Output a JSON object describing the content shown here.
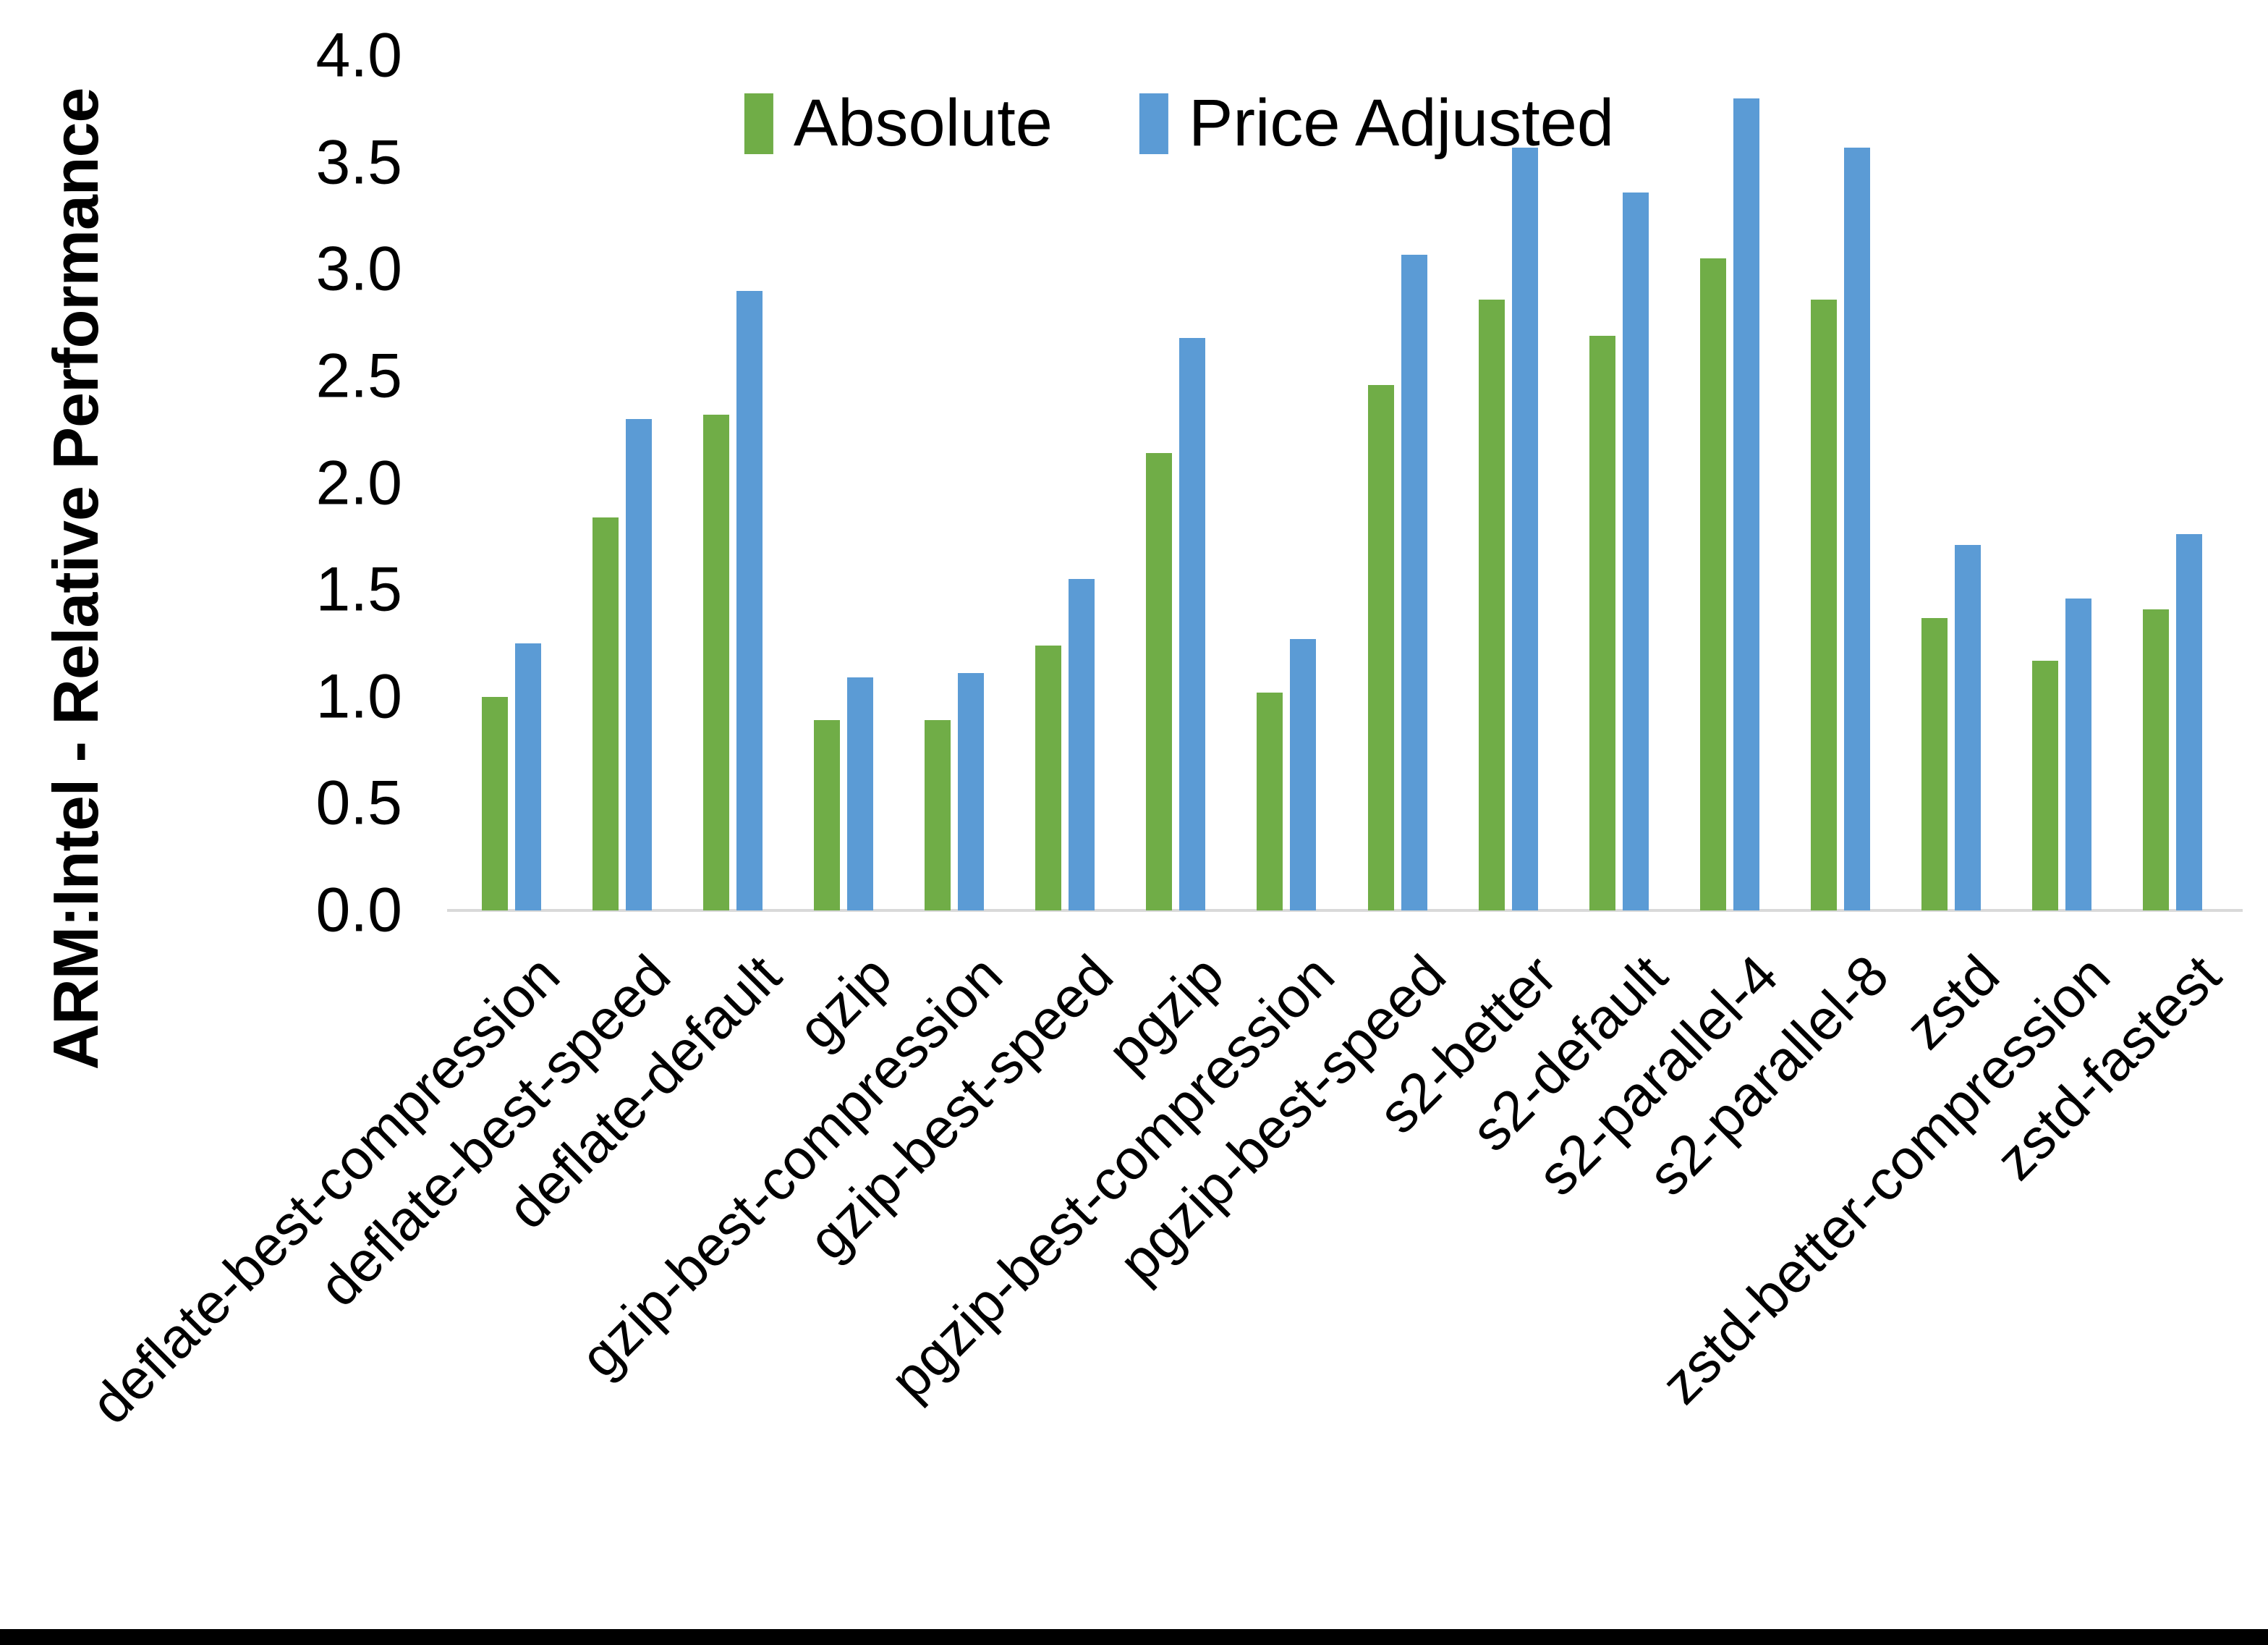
{
  "page": {
    "background": "#ffffff"
  },
  "frame": {
    "bottom_bar_color": "#000000"
  },
  "axis": {
    "line_color": "#d9d9d9"
  },
  "chart_data": {
    "type": "bar",
    "title": "",
    "xlabel": "",
    "ylabel": "ARM:Intel - Relative Performance",
    "ylim": [
      0.0,
      4.0
    ],
    "ytick_step": 0.5,
    "ytick_labels": [
      "0.0",
      "0.5",
      "1.0",
      "1.5",
      "2.0",
      "2.5",
      "3.0",
      "3.5",
      "4.0"
    ],
    "grid": false,
    "legend_position": "top-center",
    "categories": [
      "deflate-best-compression",
      "deflate-best-speed",
      "deflate-default",
      "gzip",
      "gzip-best-compression",
      "gzip-best-speed",
      "pgzip",
      "pgzip-best-compression",
      "pgzip-best-speed",
      "s2-better",
      "s2-default",
      "s2-parallel-4",
      "s2-parallel-8",
      "zstd",
      "zstd-better-compression",
      "zstd-fastest"
    ],
    "series": [
      {
        "name": "Absolute",
        "color": "#70AD47",
        "values": [
          1.0,
          1.84,
          2.32,
          0.89,
          0.89,
          1.24,
          2.14,
          1.02,
          2.46,
          2.86,
          2.69,
          3.05,
          2.86,
          1.37,
          1.17,
          1.41
        ]
      },
      {
        "name": "Price Adjusted",
        "color": "#5B9BD5",
        "values": [
          1.25,
          2.3,
          2.9,
          1.09,
          1.11,
          1.55,
          2.68,
          1.27,
          3.07,
          3.57,
          3.36,
          3.8,
          3.57,
          1.71,
          1.46,
          1.76
        ]
      }
    ]
  }
}
